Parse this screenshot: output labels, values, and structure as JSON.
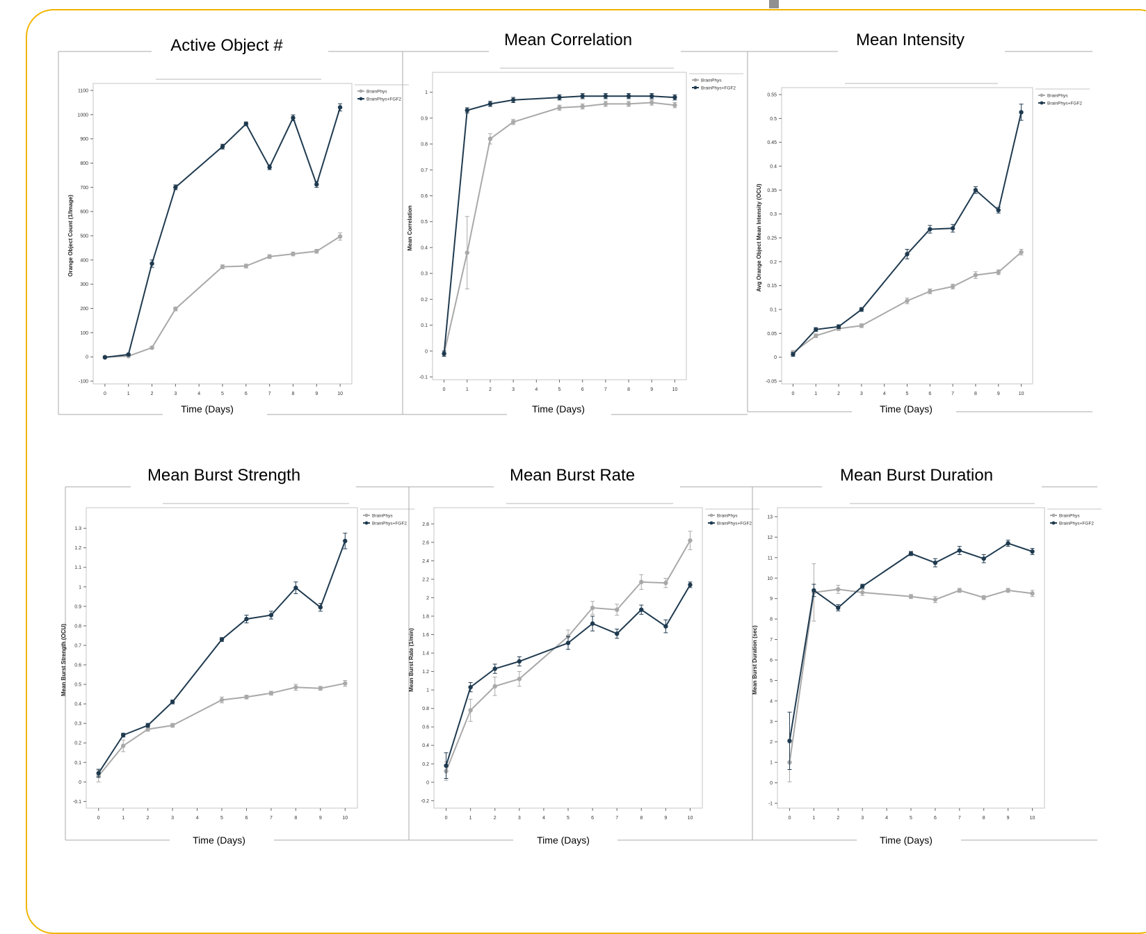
{
  "colors": {
    "frame": "#f0b400",
    "series_a": "#a9a9a9",
    "series_b": "#1f3a4f"
  },
  "chart_data": [
    {
      "type": "line",
      "title": "Active Object #",
      "xlabel": "Time (Days)",
      "ylabel": "Orange Object Count (1/Image)",
      "x": [
        0,
        1,
        2,
        3,
        5,
        6,
        7,
        8,
        9,
        10
      ],
      "xlim": [
        -0.5,
        10.5
      ],
      "xticks": [
        "0",
        "1",
        "2",
        "3",
        "4",
        "5",
        "6",
        "7",
        "8",
        "9",
        "10"
      ],
      "ylim": [
        -100,
        1100
      ],
      "yticks": [
        "-100",
        "0",
        "100",
        "200",
        "300",
        "400",
        "500",
        "600",
        "700",
        "800",
        "900",
        "1000",
        "1100"
      ],
      "legend_position": "top-right",
      "series": [
        {
          "name": "BrainPhys",
          "color": "#a9a9a9",
          "values": [
            0,
            3,
            38,
            198,
            372,
            375,
            414,
            425,
            436,
            497
          ],
          "error": [
            3,
            3,
            5,
            8,
            8,
            8,
            8,
            8,
            8,
            15
          ]
        },
        {
          "name": "BrainPhys+FGF2",
          "color": "#1f3a4f",
          "values": [
            -2,
            10,
            385,
            700,
            868,
            962,
            783,
            987,
            712,
            1030
          ],
          "error": [
            3,
            4,
            15,
            10,
            10,
            8,
            10,
            12,
            12,
            15
          ]
        }
      ]
    },
    {
      "type": "line",
      "title": "Mean Correlation",
      "xlabel": "Time (Days)",
      "ylabel": "Mean Correlation",
      "x": [
        0,
        1,
        2,
        3,
        5,
        6,
        7,
        8,
        9,
        10
      ],
      "xlim": [
        -0.5,
        10.5
      ],
      "xticks": [
        "0",
        "1",
        "2",
        "3",
        "4",
        "5",
        "6",
        "7",
        "8",
        "9",
        "10"
      ],
      "ylim": [
        -0.1,
        1.05
      ],
      "yticks": [
        "-0.1",
        "0",
        "0.1",
        "0.2",
        "0.3",
        "0.4",
        "0.5",
        "0.6",
        "0.7",
        "0.8",
        "0.9",
        "1"
      ],
      "legend_position": "top-right",
      "series": [
        {
          "name": "BrainPhys",
          "color": "#a9a9a9",
          "values": [
            -0.01,
            0.38,
            0.82,
            0.885,
            0.94,
            0.945,
            0.955,
            0.955,
            0.96,
            0.95
          ],
          "error": [
            0.01,
            0.14,
            0.02,
            0.01,
            0.01,
            0.01,
            0.01,
            0.01,
            0.01,
            0.01
          ]
        },
        {
          "name": "BrainPhys+FGF2",
          "color": "#1f3a4f",
          "values": [
            -0.01,
            0.93,
            0.955,
            0.97,
            0.98,
            0.985,
            0.985,
            0.985,
            0.985,
            0.98
          ],
          "error": [
            0.01,
            0.01,
            0.01,
            0.01,
            0.01,
            0.01,
            0.01,
            0.01,
            0.01,
            0.01
          ]
        }
      ]
    },
    {
      "type": "line",
      "title": "Mean Intensity",
      "xlabel": "Time (Days)",
      "ylabel": "Avg Orange Object Mean Intensity (OCU)",
      "x": [
        0,
        1,
        2,
        3,
        5,
        6,
        7,
        8,
        9,
        10
      ],
      "xlim": [
        -0.5,
        10.5
      ],
      "xticks": [
        "0",
        "1",
        "2",
        "3",
        "4",
        "5",
        "6",
        "7",
        "8",
        "9",
        "10"
      ],
      "ylim": [
        -0.05,
        0.55
      ],
      "yticks": [
        "-0.05",
        "0",
        "0.05",
        "0.1",
        "0.15",
        "0.2",
        "0.25",
        "0.3",
        "0.35",
        "0.4",
        "0.45",
        "0.5",
        "0.55"
      ],
      "legend_position": "top-right",
      "series": [
        {
          "name": "BrainPhys",
          "color": "#a9a9a9",
          "values": [
            0.01,
            0.045,
            0.06,
            0.066,
            0.118,
            0.138,
            0.148,
            0.172,
            0.178,
            0.22
          ],
          "error": [
            0.004,
            0.004,
            0.004,
            0.004,
            0.006,
            0.005,
            0.005,
            0.007,
            0.005,
            0.006
          ]
        },
        {
          "name": "BrainPhys+FGF2",
          "color": "#1f3a4f",
          "values": [
            0.006,
            0.058,
            0.064,
            0.1,
            0.216,
            0.268,
            0.27,
            0.35,
            0.308,
            0.513
          ],
          "error": [
            0.004,
            0.004,
            0.004,
            0.004,
            0.01,
            0.008,
            0.008,
            0.007,
            0.006,
            0.017
          ]
        }
      ]
    },
    {
      "type": "line",
      "title": "Mean Burst Strength",
      "xlabel": "Time (Days)",
      "ylabel": "Mean Burst Strength (OCU)",
      "x": [
        0,
        1,
        2,
        3,
        5,
        6,
        7,
        8,
        9,
        10
      ],
      "xlim": [
        -0.5,
        10.5
      ],
      "xticks": [
        "0",
        "1",
        "2",
        "3",
        "4",
        "5",
        "6",
        "7",
        "8",
        "9",
        "10"
      ],
      "ylim": [
        -0.12,
        1.37
      ],
      "yticks": [
        "-0.1",
        "0",
        "0.1",
        "0.2",
        "0.3",
        "0.4",
        "0.5",
        "0.6",
        "0.7",
        "0.8",
        "0.9",
        "1",
        "1.1",
        "1.2",
        "1.3"
      ],
      "legend_position": "top-right",
      "series": [
        {
          "name": "BrainPhys",
          "color": "#a9a9a9",
          "values": [
            0.03,
            0.185,
            0.27,
            0.29,
            0.42,
            0.435,
            0.455,
            0.485,
            0.48,
            0.505
          ],
          "error": [
            0.03,
            0.03,
            0.01,
            0.01,
            0.015,
            0.01,
            0.01,
            0.015,
            0.01,
            0.015
          ]
        },
        {
          "name": "BrainPhys+FGF2",
          "color": "#1f3a4f",
          "values": [
            0.045,
            0.24,
            0.29,
            0.41,
            0.73,
            0.835,
            0.855,
            0.995,
            0.895,
            1.235
          ],
          "error": [
            0.02,
            0.01,
            0.01,
            0.01,
            0.01,
            0.02,
            0.02,
            0.03,
            0.02,
            0.04
          ]
        }
      ]
    },
    {
      "type": "line",
      "title": "Mean Burst Rate",
      "xlabel": "Time (Days)",
      "ylabel": "Mean Burst Rate (1/min)",
      "x": [
        0,
        1,
        2,
        3,
        5,
        6,
        7,
        8,
        9,
        10
      ],
      "xlim": [
        -0.5,
        10.5
      ],
      "xticks": [
        "0",
        "1",
        "2",
        "3",
        "4",
        "5",
        "6",
        "7",
        "8",
        "9",
        "10"
      ],
      "ylim": [
        -0.25,
        2.9
      ],
      "yticks": [
        "-0.2",
        "0",
        "0.2",
        "0.4",
        "0.6",
        "0.8",
        "1",
        "1.2",
        "1.4",
        "1.6",
        "1.8",
        "2",
        "2.2",
        "2.4",
        "2.6",
        "2.8"
      ],
      "legend_position": "top-right",
      "series": [
        {
          "name": "BrainPhys",
          "color": "#a9a9a9",
          "values": [
            0.12,
            0.78,
            1.04,
            1.12,
            1.58,
            1.89,
            1.87,
            2.17,
            2.16,
            2.62
          ],
          "error": [
            0.1,
            0.12,
            0.1,
            0.08,
            0.07,
            0.07,
            0.06,
            0.08,
            0.05,
            0.1
          ]
        },
        {
          "name": "BrainPhys+FGF2",
          "color": "#1f3a4f",
          "values": [
            0.18,
            1.03,
            1.23,
            1.31,
            1.51,
            1.72,
            1.61,
            1.87,
            1.69,
            2.14
          ],
          "error": [
            0.14,
            0.05,
            0.05,
            0.05,
            0.07,
            0.08,
            0.05,
            0.05,
            0.07,
            0.03
          ]
        }
      ]
    },
    {
      "type": "line",
      "title": "Mean Burst Duration",
      "xlabel": "Time (Days)",
      "ylabel": "Mean Burst Duration (sec)",
      "x": [
        0,
        1,
        2,
        3,
        5,
        6,
        7,
        8,
        9,
        10
      ],
      "xlim": [
        -0.5,
        10.5
      ],
      "xticks": [
        "0",
        "1",
        "2",
        "3",
        "4",
        "5",
        "6",
        "7",
        "8",
        "9",
        "10"
      ],
      "ylim": [
        -1.1,
        13.1
      ],
      "yticks": [
        "-1",
        "0",
        "1",
        "2",
        "3",
        "4",
        "5",
        "6",
        "7",
        "8",
        "9",
        "10",
        "11",
        "12",
        "13"
      ],
      "legend_position": "top-right",
      "series": [
        {
          "name": "BrainPhys",
          "color": "#a9a9a9",
          "values": [
            1.0,
            9.3,
            9.45,
            9.3,
            9.1,
            8.95,
            9.4,
            9.05,
            9.4,
            9.25
          ],
          "error": [
            0.95,
            1.4,
            0.2,
            0.15,
            0.1,
            0.15,
            0.1,
            0.1,
            0.1,
            0.15
          ]
        },
        {
          "name": "BrainPhys+FGF2",
          "color": "#1f3a4f",
          "values": [
            2.05,
            9.4,
            8.55,
            9.6,
            11.2,
            10.75,
            11.35,
            10.95,
            11.7,
            11.3
          ],
          "error": [
            1.4,
            0.3,
            0.15,
            0.1,
            0.1,
            0.2,
            0.2,
            0.2,
            0.15,
            0.15
          ]
        }
      ]
    }
  ]
}
